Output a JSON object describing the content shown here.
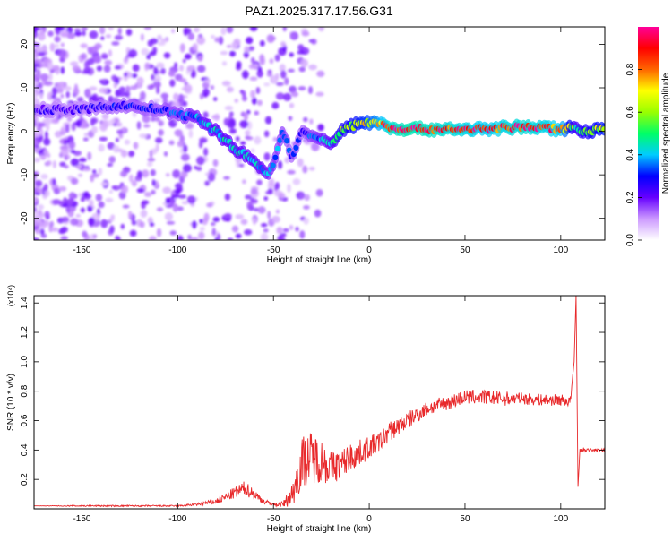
{
  "title": "PAZ1.2025.317.17.56.G31",
  "chart_data": [
    {
      "type": "heatmap",
      "xlabel": "Height of straight line (km)",
      "ylabel": "Frequency (Hz)",
      "xlim": [
        -175,
        123
      ],
      "ylim": [
        -25,
        24
      ],
      "x_ticks": [
        "-150",
        "-100",
        "-50",
        "0",
        "50",
        "100"
      ],
      "y_ticks": [
        "-20",
        "-10",
        "0",
        "10",
        "20"
      ],
      "colorbar": {
        "label": "Normalized spectral amplitude",
        "range": [
          0,
          1
        ],
        "ticks": [
          "0.0",
          "0.2",
          "0.4",
          "0.6",
          "0.8"
        ],
        "colors": [
          "#ffffff",
          "#cc99ff",
          "#6600ff",
          "#0000ff",
          "#00ccff",
          "#00ff66",
          "#99ff00",
          "#ffff00",
          "#ff6600",
          "#ff0000",
          "#ff0099"
        ]
      },
      "ridge": {
        "x": [
          -170,
          -150,
          -130,
          -110,
          -100,
          -90,
          -80,
          -70,
          -60,
          -52,
          -45,
          -40,
          -35,
          -30,
          -25,
          -20,
          -15,
          -10,
          -5,
          0,
          5,
          10,
          20,
          40,
          60,
          80,
          100,
          108,
          112,
          123
        ],
        "y": [
          5,
          5,
          6,
          5,
          4,
          3,
          0,
          -4,
          -7,
          -10,
          0,
          -6,
          0,
          -1,
          -2,
          -3,
          0,
          1,
          2,
          2,
          2,
          1,
          0.5,
          0.5,
          0.5,
          1,
          0.5,
          1,
          0,
          0.5
        ],
        "amplitude": [
          0.25,
          0.25,
          0.3,
          0.3,
          0.35,
          0.4,
          0.45,
          0.45,
          0.45,
          0.4,
          0.35,
          0.3,
          0.3,
          0.35,
          0.4,
          0.45,
          0.6,
          0.65,
          0.7,
          0.75,
          0.85,
          0.95,
          1.0,
          0.95,
          0.9,
          0.95,
          0.9,
          0.5,
          0.6,
          0.7
        ]
      }
    },
    {
      "type": "line",
      "xlabel": "Height of straight line (km)",
      "ylabel": "SNR (10 * v/v)",
      "y_multiplier": "(x10⁴)",
      "xlim": [
        -175,
        123
      ],
      "ylim": [
        0,
        1.45
      ],
      "x_ticks": [
        "-150",
        "-100",
        "-50",
        "0",
        "50",
        "100"
      ],
      "y_ticks": [
        "0.2",
        "0.4",
        "0.6",
        "0.8",
        "1.0",
        "1.2",
        "1.4"
      ],
      "series": [
        {
          "color": "#e8292b",
          "x": [
            -175,
            -150,
            -120,
            -100,
            -90,
            -80,
            -75,
            -70,
            -65,
            -60,
            -55,
            -50,
            -45,
            -40,
            -38,
            -35,
            -30,
            -25,
            -20,
            -15,
            -10,
            -5,
            0,
            5,
            10,
            20,
            30,
            40,
            50,
            60,
            70,
            80,
            90,
            100,
            105,
            107,
            108,
            109,
            110,
            112,
            115,
            123
          ],
          "y": [
            0.02,
            0.02,
            0.02,
            0.02,
            0.03,
            0.05,
            0.08,
            0.11,
            0.14,
            0.1,
            0.05,
            0.03,
            0.03,
            0.1,
            0.2,
            0.32,
            0.35,
            0.33,
            0.28,
            0.3,
            0.35,
            0.38,
            0.42,
            0.45,
            0.52,
            0.6,
            0.68,
            0.72,
            0.76,
            0.76,
            0.75,
            0.75,
            0.74,
            0.74,
            0.73,
            1.0,
            1.45,
            0.15,
            0.4,
            0.4,
            0.4,
            0.4
          ],
          "noise": [
            0,
            0.005,
            0.005,
            0.005,
            0.01,
            0.02,
            0.03,
            0.04,
            0.05,
            0.04,
            0.02,
            0.01,
            0.02,
            0.08,
            0.14,
            0.18,
            0.18,
            0.15,
            0.12,
            0.1,
            0.1,
            0.09,
            0.08,
            0.07,
            0.07,
            0.06,
            0.05,
            0.05,
            0.05,
            0.05,
            0.05,
            0.04,
            0.04,
            0.04,
            0.04,
            0,
            0,
            0,
            0.01,
            0.01,
            0.01,
            0.01
          ]
        }
      ]
    }
  ]
}
